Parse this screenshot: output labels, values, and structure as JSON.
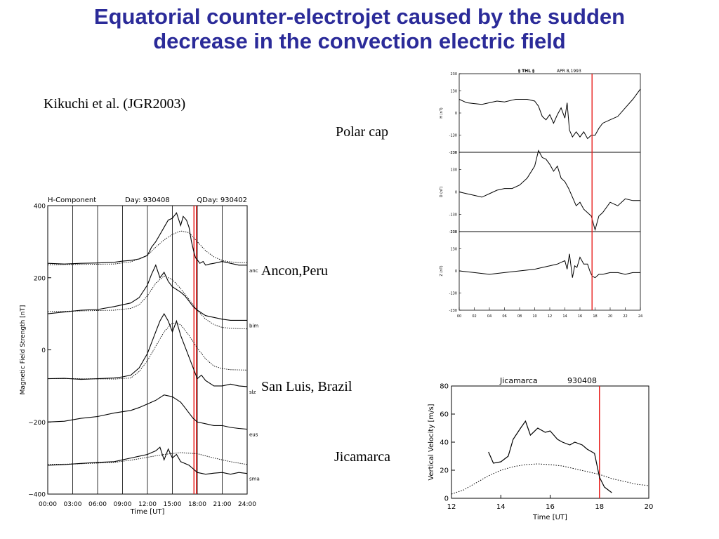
{
  "slide": {
    "title_line1": "Equatorial counter-electrojet caused by the sudden",
    "title_line2": "decrease in the convection electric field",
    "citation": "Kikuchi et al. (JGR2003)",
    "label_polar": "Polar cap",
    "label_ancon": "Ancon,Peru",
    "label_sanluis": "San Luis, Brazil",
    "label_jicamarca": "Jicamarca"
  },
  "colors": {
    "title": "#2b2b99",
    "event_marker": "#e8201e",
    "trace": "#000000"
  },
  "chart_data": [
    {
      "type": "line",
      "header": {
        "left": "H-Component",
        "mid": "Day: 930408",
        "right": "QDay: 930402"
      },
      "xlabel": "Time [UT]",
      "ylabel": "Magnetic Field Strength  [nT]",
      "xlim": [
        0,
        24
      ],
      "ylim": [
        -400,
        400
      ],
      "xticks": [
        "00:00",
        "03:00",
        "06:00",
        "09:00",
        "12:00",
        "15:00",
        "18:00",
        "21:00",
        "24:00"
      ],
      "yticks": [
        "400",
        "200",
        "0",
        "−200",
        "−400"
      ],
      "ytick_values": [
        400,
        200,
        0,
        -200,
        -400
      ],
      "vertical_lines_hours": [
        3,
        6,
        9,
        12,
        15,
        18,
        21
      ],
      "event_marker_hours": [
        17.6,
        17.9
      ],
      "series": [
        {
          "name": "anc",
          "style": "solid",
          "x": [
            0,
            2,
            4,
            6,
            8,
            9,
            10,
            11,
            12,
            12.5,
            13,
            13.5,
            14,
            14.5,
            15,
            15.5,
            16,
            16.3,
            16.7,
            17,
            17.3,
            17.6,
            17.8,
            18,
            18.3,
            18.7,
            19,
            19.5,
            20,
            21,
            22,
            23,
            24
          ],
          "y": [
            240,
            238,
            240,
            241,
            243,
            246,
            248,
            252,
            262,
            285,
            300,
            320,
            340,
            360,
            365,
            380,
            345,
            370,
            360,
            340,
            300,
            270,
            255,
            250,
            240,
            245,
            235,
            238,
            240,
            245,
            240,
            235,
            235
          ]
        },
        {
          "name": "anc_quiet",
          "style": "dotted",
          "x": [
            0,
            4,
            8,
            10,
            12,
            13,
            14,
            15,
            16,
            17,
            18,
            19,
            20,
            21,
            22,
            23,
            24
          ],
          "y": [
            236,
            237,
            238,
            244,
            262,
            285,
            305,
            320,
            330,
            325,
            300,
            275,
            258,
            248,
            244,
            242,
            242
          ]
        },
        {
          "name": "bim",
          "style": "solid",
          "x": [
            0,
            2,
            4,
            6,
            8,
            10,
            11,
            12,
            12.5,
            13,
            13.5,
            14,
            14.5,
            15,
            16,
            16.5,
            17,
            17.5,
            18,
            19,
            20,
            21,
            22,
            23,
            24
          ],
          "y": [
            100,
            105,
            110,
            112,
            120,
            130,
            145,
            180,
            210,
            235,
            200,
            215,
            190,
            175,
            160,
            150,
            135,
            120,
            110,
            95,
            90,
            85,
            82,
            82,
            82
          ]
        },
        {
          "name": "bim_quiet",
          "style": "dotted",
          "x": [
            0,
            4,
            8,
            10,
            11,
            12,
            13,
            14,
            15,
            16,
            17,
            18,
            19,
            20,
            21,
            22,
            24
          ],
          "y": [
            106,
            108,
            110,
            115,
            125,
            150,
            185,
            205,
            195,
            170,
            140,
            110,
            85,
            70,
            62,
            60,
            58
          ]
        },
        {
          "name": "slz",
          "style": "solid",
          "x": [
            0,
            2,
            4,
            6,
            8,
            9,
            10,
            11,
            12,
            12.5,
            13,
            13.5,
            14,
            14.5,
            15,
            15.5,
            16,
            16.5,
            17,
            17.5,
            18,
            18.5,
            19,
            20,
            21,
            22,
            23,
            24
          ],
          "y": [
            -80,
            -79,
            -82,
            -80,
            -78,
            -75,
            -70,
            -50,
            -10,
            20,
            50,
            80,
            100,
            80,
            50,
            80,
            40,
            10,
            -20,
            -50,
            -80,
            -70,
            -85,
            -100,
            -100,
            -95,
            -100,
            -102
          ]
        },
        {
          "name": "slz_quiet",
          "style": "dotted",
          "x": [
            0,
            4,
            8,
            10,
            11,
            12,
            13,
            14,
            15,
            16,
            17,
            18,
            19,
            20,
            21,
            22,
            24
          ],
          "y": [
            -80,
            -80,
            -81,
            -78,
            -60,
            -30,
            10,
            50,
            75,
            70,
            40,
            5,
            -25,
            -45,
            -52,
            -55,
            -56
          ]
        },
        {
          "name": "eus",
          "style": "solid",
          "x": [
            0,
            2,
            4,
            6,
            8,
            10,
            11,
            12,
            13,
            14,
            15,
            16,
            16.5,
            17,
            17.5,
            18,
            19,
            20,
            21,
            22,
            23,
            24
          ],
          "y": [
            -200,
            -198,
            -190,
            -185,
            -175,
            -168,
            -160,
            -150,
            -140,
            -125,
            -130,
            -145,
            -160,
            -175,
            -190,
            -200,
            -205,
            -210,
            -210,
            -215,
            -218,
            -220
          ]
        },
        {
          "name": "sma",
          "style": "solid",
          "x": [
            0,
            2,
            4,
            6,
            8,
            9,
            10,
            11,
            12,
            12.5,
            13,
            13.5,
            14,
            14.5,
            15,
            15.5,
            16,
            17,
            17.5,
            18,
            19,
            20,
            21,
            22,
            23,
            24
          ],
          "y": [
            -320,
            -318,
            -315,
            -312,
            -310,
            -305,
            -300,
            -295,
            -290,
            -285,
            -280,
            -270,
            -305,
            -275,
            -300,
            -290,
            -310,
            -320,
            -330,
            -340,
            -345,
            -342,
            -340,
            -345,
            -340,
            -343
          ]
        },
        {
          "name": "sma_quiet",
          "style": "dotted",
          "x": [
            0,
            4,
            8,
            10,
            12,
            14,
            16,
            18,
            20,
            22,
            24
          ],
          "y": [
            -318,
            -316,
            -312,
            -306,
            -298,
            -290,
            -285,
            -288,
            -300,
            -310,
            -318
          ]
        }
      ],
      "series_labels": [
        "anc",
        "bim",
        "slz",
        "eus",
        "sma"
      ]
    },
    {
      "type": "line",
      "header_station": "THL",
      "header_date": "APR  8,1993",
      "xlim": [
        0,
        24
      ],
      "xticks": [
        "00",
        "02",
        "04",
        "06",
        "08",
        "10",
        "12",
        "14",
        "16",
        "18",
        "20",
        "22",
        "24"
      ],
      "event_marker_hour": 17.6,
      "panels": [
        {
          "component": "H (nT)",
          "ylim": [
            -230,
            230
          ],
          "yticks": [
            "230",
            "130",
            "0",
            "-130",
            "-230"
          ],
          "ytick_values": [
            230,
            130,
            0,
            -130,
            -230
          ],
          "x": [
            0,
            1,
            2,
            3,
            4,
            5,
            6,
            7,
            7.5,
            8,
            9,
            10,
            10.5,
            11,
            11.5,
            12,
            12.5,
            13,
            13.5,
            14,
            14.3,
            14.6,
            15,
            15.5,
            16,
            16.5,
            17,
            17.5,
            18,
            18.5,
            19,
            20,
            21,
            22,
            23,
            24
          ],
          "y": [
            80,
            60,
            55,
            50,
            60,
            70,
            65,
            75,
            80,
            80,
            80,
            70,
            40,
            -20,
            -40,
            -10,
            -60,
            -10,
            30,
            -30,
            60,
            -100,
            -140,
            -110,
            -140,
            -110,
            -150,
            -130,
            -130,
            -90,
            -60,
            -40,
            -20,
            30,
            80,
            140
          ]
        },
        {
          "component": "D (nT)",
          "ylim": [
            -230,
            230
          ],
          "yticks": [
            "230",
            "130",
            "0",
            "-130",
            "-230"
          ],
          "ytick_values": [
            230,
            130,
            0,
            -130,
            -230
          ],
          "x": [
            0,
            1,
            2,
            3,
            4,
            5,
            6,
            7,
            8,
            9,
            10,
            10.5,
            11,
            11.5,
            12,
            12.5,
            13,
            13.5,
            14,
            14.5,
            15,
            15.5,
            16,
            16.5,
            17,
            17.5,
            18,
            18.5,
            19,
            20,
            21,
            22,
            23,
            24
          ],
          "y": [
            0,
            -10,
            -20,
            -30,
            -10,
            10,
            20,
            20,
            40,
            80,
            150,
            240,
            200,
            190,
            160,
            120,
            150,
            80,
            60,
            20,
            -30,
            -80,
            -60,
            -100,
            -120,
            -140,
            -220,
            -140,
            -120,
            -60,
            -80,
            -40,
            -50,
            -50
          ]
        },
        {
          "component": "Z (nT)",
          "ylim": [
            -230,
            230
          ],
          "yticks": [
            "230",
            "130",
            "0",
            "-130",
            "-230"
          ],
          "ytick_values": [
            230,
            130,
            0,
            -130,
            -230
          ],
          "x": [
            0,
            2,
            4,
            6,
            8,
            10,
            11,
            12,
            13,
            13.5,
            14,
            14.3,
            14.6,
            15,
            15.3,
            15.6,
            16,
            16.5,
            17,
            17.3,
            17.6,
            18,
            18.5,
            19,
            20,
            21,
            22,
            23,
            24
          ],
          "y": [
            0,
            -10,
            -20,
            -10,
            0,
            10,
            20,
            30,
            40,
            50,
            60,
            10,
            100,
            -40,
            30,
            20,
            80,
            40,
            40,
            0,
            -30,
            -40,
            -20,
            -20,
            -10,
            -10,
            -20,
            -10,
            -10
          ]
        }
      ]
    },
    {
      "type": "line",
      "title_left": "Jicamarca",
      "title_right": "930408",
      "xlabel": "Time [UT]",
      "ylabel": "Vertical Velocity [m/s]",
      "xlim": [
        12,
        20
      ],
      "ylim": [
        0,
        80
      ],
      "xticks": [
        "12",
        "14",
        "16",
        "18",
        "20"
      ],
      "xtick_values": [
        12,
        14,
        16,
        18,
        20
      ],
      "yticks": [
        "0",
        "20",
        "40",
        "60",
        "80"
      ],
      "ytick_values": [
        0,
        20,
        40,
        60,
        80
      ],
      "event_marker_x": 18,
      "series": [
        {
          "name": "observed",
          "style": "solid",
          "x": [
            13.5,
            13.7,
            14.0,
            14.3,
            14.5,
            14.8,
            15.0,
            15.2,
            15.5,
            15.8,
            16.0,
            16.3,
            16.5,
            16.8,
            17.0,
            17.3,
            17.5,
            17.8,
            18.0,
            18.2,
            18.5
          ],
          "y": [
            33,
            25,
            26,
            30,
            42,
            50,
            55,
            45,
            50,
            47,
            48,
            42,
            40,
            38,
            40,
            38,
            35,
            32,
            15,
            8,
            4
          ]
        },
        {
          "name": "quiet",
          "style": "dotted",
          "x": [
            12,
            12.5,
            13,
            13.5,
            14,
            14.5,
            15,
            15.5,
            16,
            16.5,
            17,
            17.5,
            18,
            18.5,
            19,
            19.5,
            20
          ],
          "y": [
            3,
            6,
            11,
            16,
            20,
            22.5,
            24,
            24.5,
            24,
            23,
            21,
            19,
            17,
            14,
            12,
            10,
            9
          ]
        }
      ]
    }
  ]
}
